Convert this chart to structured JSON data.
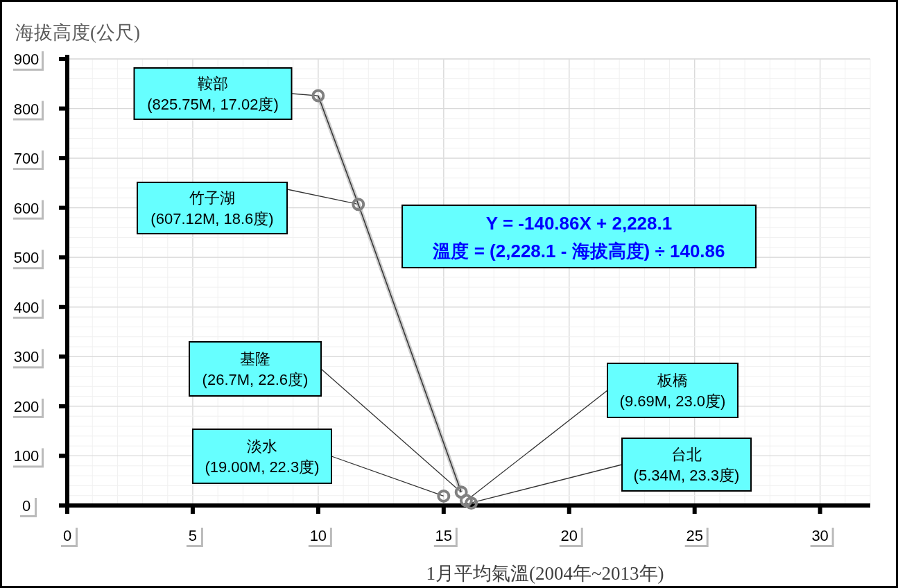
{
  "chart_data": {
    "type": "scatter",
    "xlabel": "1月平均氣溫(2004年~2013年)",
    "ylabel": "海拔高度(公尺)",
    "xlim": [
      0,
      32
    ],
    "ylim": [
      0,
      900
    ],
    "xticks": [
      0,
      5,
      10,
      15,
      20,
      25,
      30
    ],
    "yticks": [
      0,
      100,
      200,
      300,
      400,
      500,
      600,
      700,
      800,
      900
    ],
    "grid": true,
    "series": [
      {
        "type": "line",
        "color": "#333333",
        "x": [
          10,
          11.6,
          15.7
        ],
        "values": [
          826,
          607,
          27
        ]
      },
      {
        "marker": "circle",
        "color": "#808080",
        "x": [
          10,
          11.6,
          15.7,
          15.0,
          15.9,
          16.1
        ],
        "values": [
          826,
          607,
          27,
          19,
          10,
          5
        ]
      }
    ],
    "annotations": [
      {
        "text": "鞍部\n(825.75M, 17.02度)",
        "x": 10,
        "y": 825.75
      },
      {
        "text": "竹子湖\n(607.12M, 18.6度)",
        "x": 11.6,
        "y": 607.12
      },
      {
        "text": "基隆\n(26.7M, 22.6度)",
        "x": 15.7,
        "y": 26.7
      },
      {
        "text": "淡水\n(19.00M, 22.3度)",
        "x": 15.0,
        "y": 19.0
      },
      {
        "text": "板橋\n(9.69M, 23.0度)",
        "x": 15.9,
        "y": 9.69
      },
      {
        "text": "台北\n(5.34M, 23.3度)",
        "x": 16.1,
        "y": 5.34
      },
      "Y = -140.86X + 2,228.1",
      "溫度 = (2,228.1 - 海拔高度)  ÷ 140.86"
    ]
  }
}
